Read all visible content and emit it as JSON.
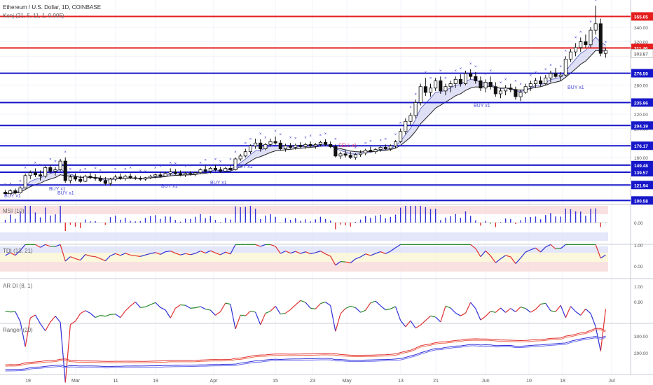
{
  "window": {
    "title": "Ethereum / U.S. Dollar, 1D, COINBASE"
  },
  "chart_data": [
    {
      "panel": "main",
      "type": "candlestick",
      "title": "Ethereum / U.S. Dollar, 1D, COINBASE",
      "indicator_label": "Konj (21, 5, 11, 1, 0.005)",
      "xlabels": [
        "19",
        "Mar",
        "11",
        "19",
        "Apr",
        "15",
        "23",
        "May",
        "13",
        "21",
        "Jun",
        "10",
        "18",
        "Jul"
      ],
      "price_axis_ticks": [
        340.0,
        320.0,
        300.0,
        280.0,
        260.0,
        240.0,
        220.0,
        200.0,
        180.0,
        160.0,
        140.0,
        120.0,
        100.0
      ],
      "price_axis_visible_labels": [
        "340.00",
        "320.00",
        "260.00",
        "240.00",
        "220.00",
        "200.00",
        "180.00",
        "160.00",
        "120.00"
      ],
      "resistance_lines": [
        {
          "label": "355.05",
          "value": 355.05,
          "color": "#e51d1d"
        },
        {
          "label": "311.46",
          "value": 311.46,
          "color": "#e51d1d"
        }
      ],
      "support_lines": [
        {
          "label": "276.50",
          "value": 276.5,
          "color": "#1717c9"
        },
        {
          "label": "235.96",
          "value": 235.96,
          "color": "#1717c9"
        },
        {
          "label": "204.19",
          "value": 204.19,
          "color": "#1717c9"
        },
        {
          "label": "176.17",
          "value": 176.17,
          "color": "#1717c9"
        },
        {
          "label": "149.48",
          "value": 149.48,
          "color": "#1717c9"
        },
        {
          "label": "139.57",
          "value": 139.57,
          "color": "#1717c9"
        },
        {
          "label": "121.94",
          "value": 121.94,
          "color": "#1717c9"
        },
        {
          "label": "100.58",
          "value": 100.58,
          "color": "#1717c9"
        }
      ],
      "last_price_label": "303.87",
      "signal_labels": [
        {
          "text": "BUY x1",
          "color": "#4a4ad8"
        },
        {
          "text": "BUY x1",
          "color": "#4a4ad8"
        },
        {
          "text": "BUY x1",
          "color": "#4a4ad8"
        },
        {
          "text": "BUY x1",
          "color": "#4a4ad8"
        },
        {
          "text": "BUY x1",
          "color": "#4a4ad8"
        },
        {
          "text": "SELL x1",
          "color": "#e0407a"
        },
        {
          "text": "BUY x1",
          "color": "#4a4ad8"
        },
        {
          "text": "BUY x1",
          "color": "#4a4ad8"
        },
        {
          "text": "BUY x1",
          "color": "#4a4ad8"
        }
      ],
      "candles": [
        [
          112,
          115,
          108,
          110
        ],
        [
          110,
          116,
          107,
          114
        ],
        [
          114,
          117,
          109,
          111
        ],
        [
          111,
          120,
          110,
          118
        ],
        [
          118,
          138,
          117,
          135
        ],
        [
          135,
          142,
          130,
          139
        ],
        [
          139,
          145,
          133,
          136
        ],
        [
          136,
          142,
          128,
          134
        ],
        [
          134,
          148,
          132,
          146
        ],
        [
          146,
          150,
          138,
          141
        ],
        [
          141,
          147,
          135,
          143
        ],
        [
          143,
          158,
          141,
          155
        ],
        [
          155,
          160,
          125,
          128
        ],
        [
          128,
          136,
          124,
          133
        ],
        [
          133,
          138,
          127,
          130
        ],
        [
          130,
          135,
          125,
          127
        ],
        [
          127,
          136,
          126,
          134
        ],
        [
          134,
          139,
          130,
          132
        ],
        [
          132,
          137,
          128,
          131
        ],
        [
          131,
          135,
          126,
          128
        ],
        [
          128,
          133,
          122,
          124
        ],
        [
          124,
          132,
          121,
          130
        ],
        [
          130,
          136,
          127,
          133
        ],
        [
          133,
          138,
          129,
          131
        ],
        [
          131,
          136,
          128,
          134
        ],
        [
          134,
          138,
          130,
          132
        ],
        [
          132,
          135,
          129,
          131
        ],
        [
          131,
          134,
          128,
          130
        ],
        [
          130,
          133,
          128,
          132
        ],
        [
          132,
          136,
          130,
          134
        ],
        [
          134,
          138,
          131,
          136
        ],
        [
          136,
          140,
          132,
          134
        ],
        [
          134,
          140,
          133,
          138
        ],
        [
          138,
          145,
          135,
          140
        ],
        [
          140,
          144,
          136,
          138
        ],
        [
          138,
          142,
          134,
          136
        ],
        [
          136,
          140,
          133,
          138
        ],
        [
          138,
          141,
          135,
          137
        ],
        [
          137,
          140,
          134,
          139
        ],
        [
          139,
          145,
          137,
          143
        ],
        [
          143,
          149,
          139,
          141
        ],
        [
          141,
          147,
          138,
          145
        ],
        [
          145,
          150,
          141,
          143
        ],
        [
          143,
          147,
          139,
          141
        ],
        [
          141,
          147,
          140,
          145
        ],
        [
          145,
          150,
          142,
          143
        ],
        [
          143,
          160,
          142,
          158
        ],
        [
          158,
          165,
          155,
          162
        ],
        [
          162,
          172,
          160,
          168
        ],
        [
          168,
          178,
          165,
          176
        ],
        [
          176,
          186,
          172,
          180
        ],
        [
          180,
          185,
          168,
          172
        ],
        [
          172,
          180,
          170,
          178
        ],
        [
          178,
          186,
          175,
          182
        ],
        [
          182,
          189,
          178,
          180
        ],
        [
          180,
          184,
          170,
          172
        ],
        [
          172,
          179,
          168,
          176
        ],
        [
          176,
          180,
          172,
          174
        ],
        [
          174,
          179,
          171,
          177
        ],
        [
          177,
          181,
          173,
          175
        ],
        [
          175,
          180,
          172,
          178
        ],
        [
          178,
          182,
          174,
          176
        ],
        [
          176,
          180,
          172,
          178
        ],
        [
          178,
          183,
          175,
          181
        ],
        [
          181,
          185,
          176,
          178
        ],
        [
          178,
          182,
          173,
          175
        ],
        [
          175,
          178,
          160,
          162
        ],
        [
          162,
          168,
          158,
          165
        ],
        [
          165,
          170,
          160,
          163
        ],
        [
          163,
          168,
          158,
          160
        ],
        [
          160,
          166,
          157,
          164
        ],
        [
          164,
          170,
          161,
          166
        ],
        [
          166,
          172,
          163,
          170
        ],
        [
          170,
          175,
          167,
          168
        ],
        [
          168,
          173,
          165,
          171
        ],
        [
          171,
          176,
          168,
          174
        ],
        [
          174,
          178,
          170,
          172
        ],
        [
          172,
          178,
          169,
          176
        ],
        [
          176,
          184,
          173,
          182
        ],
        [
          182,
          200,
          180,
          196
        ],
        [
          196,
          214,
          192,
          210
        ],
        [
          210,
          222,
          205,
          218
        ],
        [
          218,
          240,
          214,
          236
        ],
        [
          236,
          262,
          232,
          258
        ],
        [
          258,
          270,
          245,
          250
        ],
        [
          250,
          262,
          244,
          256
        ],
        [
          256,
          270,
          252,
          266
        ],
        [
          266,
          272,
          248,
          252
        ],
        [
          252,
          262,
          246,
          258
        ],
        [
          258,
          266,
          250,
          262
        ],
        [
          262,
          272,
          256,
          268
        ],
        [
          268,
          275,
          258,
          262
        ],
        [
          262,
          280,
          260,
          276
        ],
        [
          276,
          282,
          268,
          272
        ],
        [
          272,
          278,
          262,
          266
        ],
        [
          266,
          272,
          252,
          256
        ],
        [
          256,
          268,
          250,
          264
        ],
        [
          264,
          272,
          254,
          258
        ],
        [
          258,
          264,
          244,
          248
        ],
        [
          248,
          256,
          242,
          252
        ],
        [
          252,
          260,
          246,
          256
        ],
        [
          256,
          262,
          250,
          254
        ],
        [
          254,
          258,
          240,
          244
        ],
        [
          244,
          254,
          238,
          250
        ],
        [
          250,
          262,
          248,
          258
        ],
        [
          258,
          266,
          252,
          262
        ],
        [
          262,
          270,
          256,
          266
        ],
        [
          266,
          272,
          258,
          262
        ],
        [
          262,
          274,
          260,
          270
        ],
        [
          270,
          280,
          264,
          276
        ],
        [
          276,
          284,
          270,
          272
        ],
        [
          272,
          278,
          266,
          274
        ],
        [
          274,
          300,
          272,
          296
        ],
        [
          296,
          310,
          292,
          306
        ],
        [
          306,
          318,
          300,
          312
        ],
        [
          312,
          326,
          306,
          320
        ],
        [
          320,
          330,
          312,
          316
        ],
        [
          316,
          340,
          312,
          336
        ],
        [
          336,
          370,
          330,
          345
        ],
        [
          345,
          352,
          300,
          304
        ],
        [
          304,
          312,
          298,
          308
        ]
      ]
    },
    {
      "panel": "msi",
      "type": "bar",
      "title": "MSI (10)",
      "ticks": [
        "0.00"
      ],
      "zero": 0.0,
      "colors": {
        "positive": "#3030d8",
        "negative": "#e03030",
        "neutral": "#2a8a2a"
      }
    },
    {
      "panel": "tdi",
      "type": "line",
      "title": "TDI (13, 21)",
      "ticks": [
        "1.00",
        "0.00"
      ],
      "colors": {
        "up": "#3030d8",
        "down": "#e03030",
        "flat": "#2a8a2a"
      }
    },
    {
      "panel": "ardi",
      "type": "line",
      "title": "AR DI (8, 1)",
      "ticks": [
        "1.00",
        "0.90"
      ],
      "colors": {
        "up": "#e03030",
        "down": "#3030d8",
        "flat": "#2a8a2a"
      }
    },
    {
      "panel": "ranger",
      "type": "line",
      "title": "Ranger (20)",
      "ticks": [
        "300.00",
        "200.00"
      ],
      "series_colors": [
        "#e03030",
        "#f06a50",
        "#3030d8",
        "#6a6af0"
      ]
    }
  ]
}
